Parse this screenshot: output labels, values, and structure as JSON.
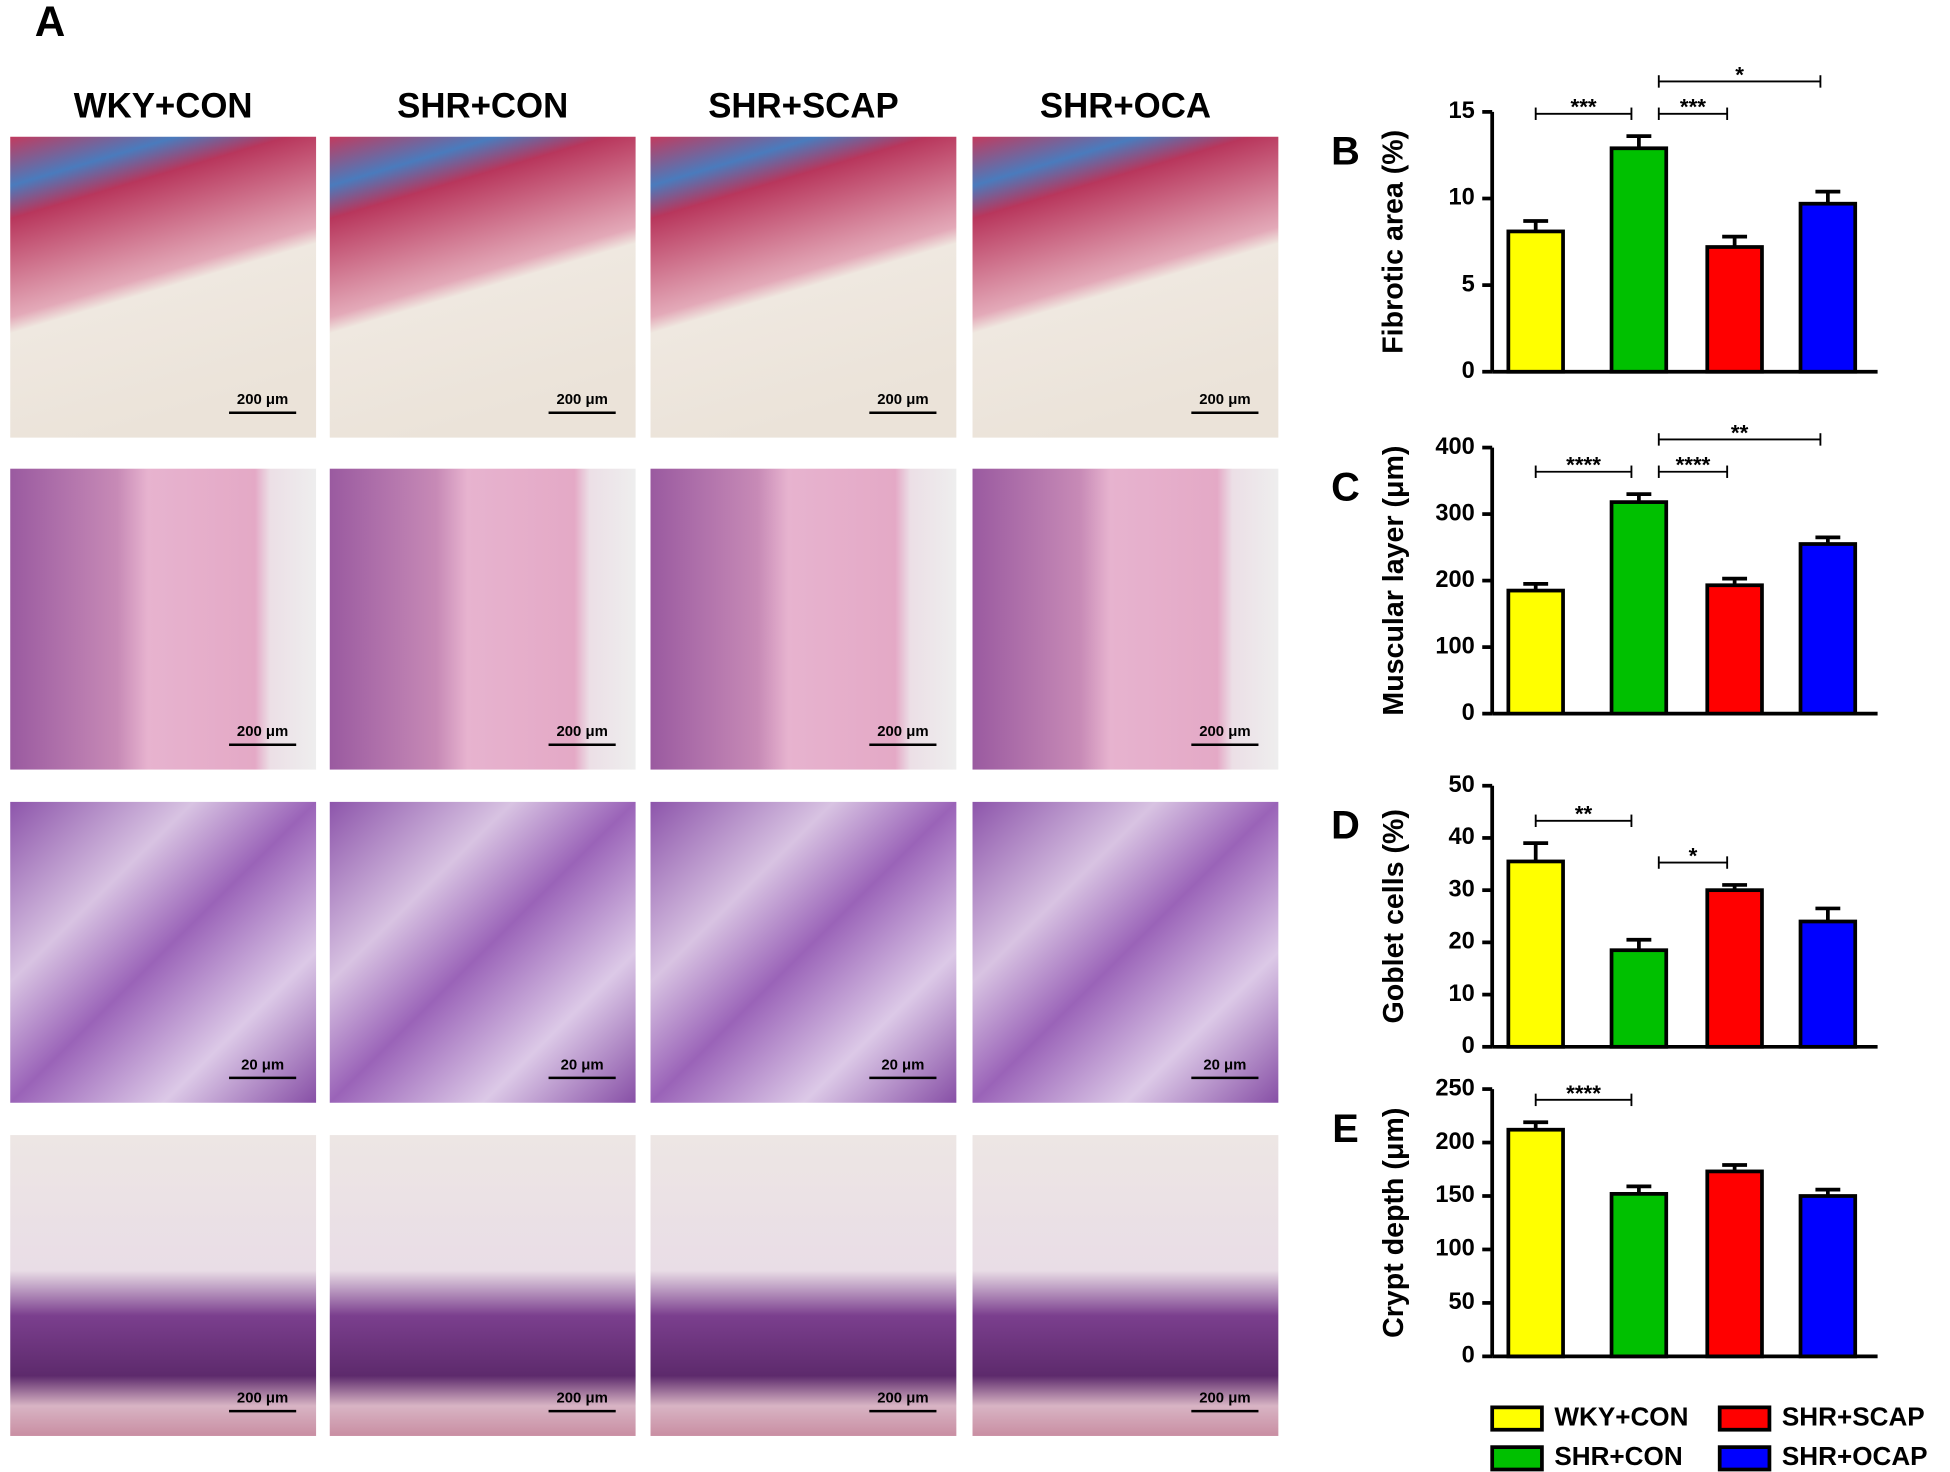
{
  "panel_a": {
    "label": "A",
    "columns": [
      "WKY+CON",
      "SHR+CON",
      "SHR+SCAP",
      "SHR+OCA"
    ],
    "scale_labels": [
      [
        "200 μm",
        "200 μm",
        "200 μm",
        "200 μm"
      ],
      [
        "200 μm",
        "200 μm",
        "200 μm",
        "200 μm"
      ],
      [
        "20 μm",
        "20 μm",
        "20 μm",
        "20 μm"
      ],
      [
        "200 μm",
        "200 μm",
        "200 μm",
        "200 μm"
      ]
    ]
  },
  "legend": {
    "entries": [
      {
        "name": "WKY+CON",
        "color": "#ffff00"
      },
      {
        "name": "SHR+CON",
        "color": "#00c000"
      },
      {
        "name": "SHR+SCAP",
        "color": "#ff0000"
      },
      {
        "name": "SHR+OCAP",
        "color": "#0000ff"
      }
    ]
  },
  "chart_data": [
    {
      "type": "bar",
      "panel": "B",
      "ylabel": "Fibrotic area (%)",
      "values": [
        8.1,
        12.9,
        7.2,
        9.7
      ],
      "errors": [
        0.6,
        0.7,
        0.6,
        0.7
      ],
      "ylim": [
        0,
        15
      ],
      "yticks": [
        0,
        5,
        10,
        15
      ],
      "significance": [
        {
          "from": 0,
          "to": 1,
          "label": "***"
        },
        {
          "from": 1,
          "to": 2,
          "label": "***"
        },
        {
          "from": 1,
          "to": 3,
          "label": "*"
        }
      ]
    },
    {
      "type": "bar",
      "panel": "C",
      "ylabel": "Muscular layer (μm)",
      "values": [
        185,
        318,
        193,
        255
      ],
      "errors": [
        10,
        12,
        10,
        10
      ],
      "ylim": [
        0,
        400
      ],
      "yticks": [
        0,
        100,
        200,
        300,
        400
      ],
      "significance": [
        {
          "from": 0,
          "to": 1,
          "label": "****"
        },
        {
          "from": 1,
          "to": 2,
          "label": "****"
        },
        {
          "from": 1,
          "to": 3,
          "label": "**"
        }
      ]
    },
    {
      "type": "bar",
      "panel": "D",
      "ylabel": "Goblet cells (%)",
      "values": [
        35.5,
        18.5,
        30,
        24
      ],
      "errors": [
        3.5,
        2,
        1,
        2.5
      ],
      "ylim": [
        0,
        50
      ],
      "yticks": [
        0,
        10,
        20,
        30,
        40,
        50
      ],
      "significance": [
        {
          "from": 0,
          "to": 1,
          "label": "**"
        },
        {
          "from": 1,
          "to": 2,
          "label": "*"
        }
      ]
    },
    {
      "type": "bar",
      "panel": "E",
      "ylabel": "Crypt depth (μm)",
      "values": [
        212,
        152,
        173,
        150
      ],
      "errors": [
        7,
        7,
        6,
        6
      ],
      "ylim": [
        0,
        250
      ],
      "yticks": [
        0,
        50,
        100,
        150,
        200,
        250
      ],
      "significance": [
        {
          "from": 0,
          "to": 1,
          "label": "****"
        }
      ]
    }
  ]
}
